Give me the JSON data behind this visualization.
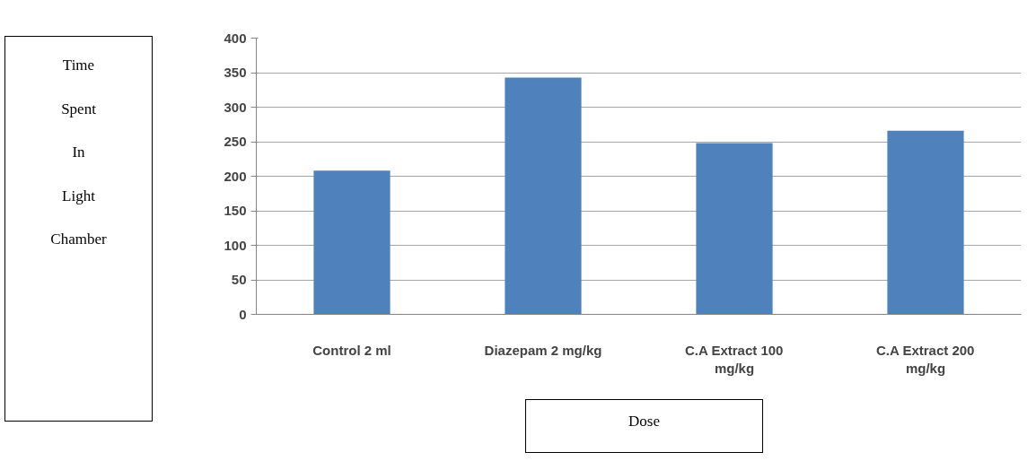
{
  "chart_data": {
    "type": "bar",
    "xlabel": "Dose",
    "ylabel": "Time Spent In Light Chamber",
    "categories": [
      "Control 2 ml",
      "Diazepam 2 mg/kg",
      "C.A Extract 100 mg/kg",
      "C.A Extract 200 mg/kg"
    ],
    "values": [
      208,
      343,
      248,
      266
    ],
    "color": "#4f81bd",
    "ylim": [
      0,
      400
    ],
    "yticks": [
      0,
      50,
      100,
      150,
      200,
      250,
      300,
      350,
      400
    ],
    "grid": "y"
  }
}
